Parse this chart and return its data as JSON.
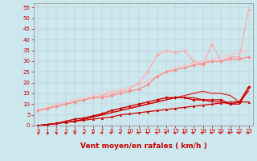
{
  "bg_color": "#cce8ee",
  "grid_color": "#aaaaaa",
  "xlim": [
    -0.5,
    23.5
  ],
  "ylim": [
    0,
    57
  ],
  "yticks": [
    0,
    5,
    10,
    15,
    20,
    25,
    30,
    35,
    40,
    45,
    50,
    55
  ],
  "xticks": [
    0,
    1,
    2,
    3,
    4,
    5,
    6,
    7,
    8,
    9,
    10,
    11,
    12,
    13,
    14,
    15,
    16,
    17,
    18,
    19,
    20,
    21,
    22,
    23
  ],
  "lines": [
    {
      "x": [
        0,
        1,
        2,
        3,
        4,
        5,
        6,
        7,
        8,
        9,
        10,
        11,
        12,
        13,
        14,
        15,
        16,
        17,
        18,
        19,
        20,
        21,
        22,
        23
      ],
      "y": [
        7,
        8.5,
        10,
        11,
        12,
        13,
        14,
        15,
        16,
        17,
        18,
        19,
        21,
        23,
        25,
        27,
        28,
        29,
        30,
        31,
        32,
        33,
        34,
        35
      ],
      "color": "#ffbbbb",
      "lw": 0.8,
      "marker": null,
      "ms": 0,
      "alpha": 0.9
    },
    {
      "x": [
        0,
        1,
        2,
        3,
        4,
        5,
        6,
        7,
        8,
        9,
        10,
        11,
        12,
        13,
        14,
        15,
        16,
        17,
        18,
        19,
        20,
        21,
        22,
        23
      ],
      "y": [
        7,
        8,
        9,
        10,
        11,
        12,
        13,
        14,
        15,
        16,
        17,
        20,
        25,
        33,
        35,
        34,
        35,
        30,
        28,
        38,
        30,
        32,
        32,
        54
      ],
      "color": "#ffaaaa",
      "lw": 0.9,
      "marker": "D",
      "ms": 2.0,
      "alpha": 1.0
    },
    {
      "x": [
        0,
        1,
        2,
        3,
        4,
        5,
        6,
        7,
        8,
        9,
        10,
        11,
        12,
        13,
        14,
        15,
        16,
        17,
        18,
        19,
        20,
        21,
        22,
        23
      ],
      "y": [
        7,
        8,
        9,
        10,
        11,
        12,
        13,
        13,
        14,
        15,
        16,
        17,
        19,
        23,
        25,
        26,
        27,
        28,
        29,
        30,
        30,
        31,
        31,
        32
      ],
      "color": "#ff8888",
      "lw": 0.9,
      "marker": "D",
      "ms": 2.0,
      "alpha": 1.0
    },
    {
      "x": [
        0,
        1,
        2,
        3,
        4,
        5,
        6,
        7,
        8,
        9,
        10,
        11,
        12,
        13,
        14,
        15,
        16,
        17,
        18,
        19,
        20,
        21,
        22,
        23
      ],
      "y": [
        0,
        0.5,
        1,
        1.5,
        2,
        3,
        4,
        5,
        6,
        7,
        8,
        9,
        10,
        11,
        12,
        13,
        14,
        15,
        16,
        15,
        15,
        14,
        11,
        16
      ],
      "color": "#dd2222",
      "lw": 0.9,
      "marker": null,
      "ms": 0,
      "alpha": 1.0
    },
    {
      "x": [
        0,
        1,
        2,
        3,
        4,
        5,
        6,
        7,
        8,
        9,
        10,
        11,
        12,
        13,
        14,
        15,
        16,
        17,
        18,
        19,
        20,
        21,
        22,
        23
      ],
      "y": [
        0,
        0.5,
        1,
        2,
        3,
        3.5,
        4.5,
        5.5,
        7,
        8,
        9,
        10,
        11,
        12,
        13,
        13,
        13,
        12,
        12,
        12,
        12,
        10,
        11,
        18
      ],
      "color": "#cc0000",
      "lw": 1.0,
      "marker": "D",
      "ms": 2.0,
      "alpha": 1.0
    },
    {
      "x": [
        0,
        1,
        2,
        3,
        4,
        5,
        6,
        7,
        8,
        9,
        10,
        11,
        12,
        13,
        14,
        15,
        16,
        17,
        18,
        19,
        20,
        21,
        22,
        23
      ],
      "y": [
        0,
        0.5,
        1,
        1.5,
        2,
        2.5,
        3,
        3.5,
        4,
        5,
        5.5,
        6,
        6.5,
        7,
        7.5,
        8,
        8.5,
        9,
        9.5,
        10,
        10.5,
        11,
        11,
        11
      ],
      "color": "#cc0000",
      "lw": 0.9,
      "marker": "^",
      "ms": 2.0,
      "alpha": 1.0
    },
    {
      "x": [
        0,
        1,
        2,
        3,
        4,
        5,
        6,
        7,
        8,
        9,
        10,
        11,
        12,
        13,
        14,
        15,
        16,
        17,
        18,
        19,
        20,
        21,
        22,
        23
      ],
      "y": [
        0,
        0.5,
        1,
        1.5,
        2,
        3,
        4,
        5,
        6,
        7,
        8,
        9,
        10,
        11,
        12,
        13,
        13,
        13,
        12,
        11,
        11,
        10,
        10,
        17
      ],
      "color": "#cc0000",
      "lw": 0.8,
      "marker": null,
      "ms": 0,
      "alpha": 1.0
    }
  ],
  "xlabel": "Vent moyen/en rafales ( km/h )",
  "xlabel_color": "#cc0000",
  "xlabel_fontsize": 6.5,
  "xlabel_fontweight": "bold",
  "tick_fontsize": 5.0,
  "tick_color": "#cc0000",
  "arrow_color": "#cc0000",
  "arrow_angles": [
    200,
    200,
    210,
    215,
    220,
    225,
    230,
    235,
    240,
    245,
    250,
    255,
    255,
    255,
    255,
    260,
    262,
    265,
    262,
    260,
    265,
    270,
    280,
    295
  ]
}
